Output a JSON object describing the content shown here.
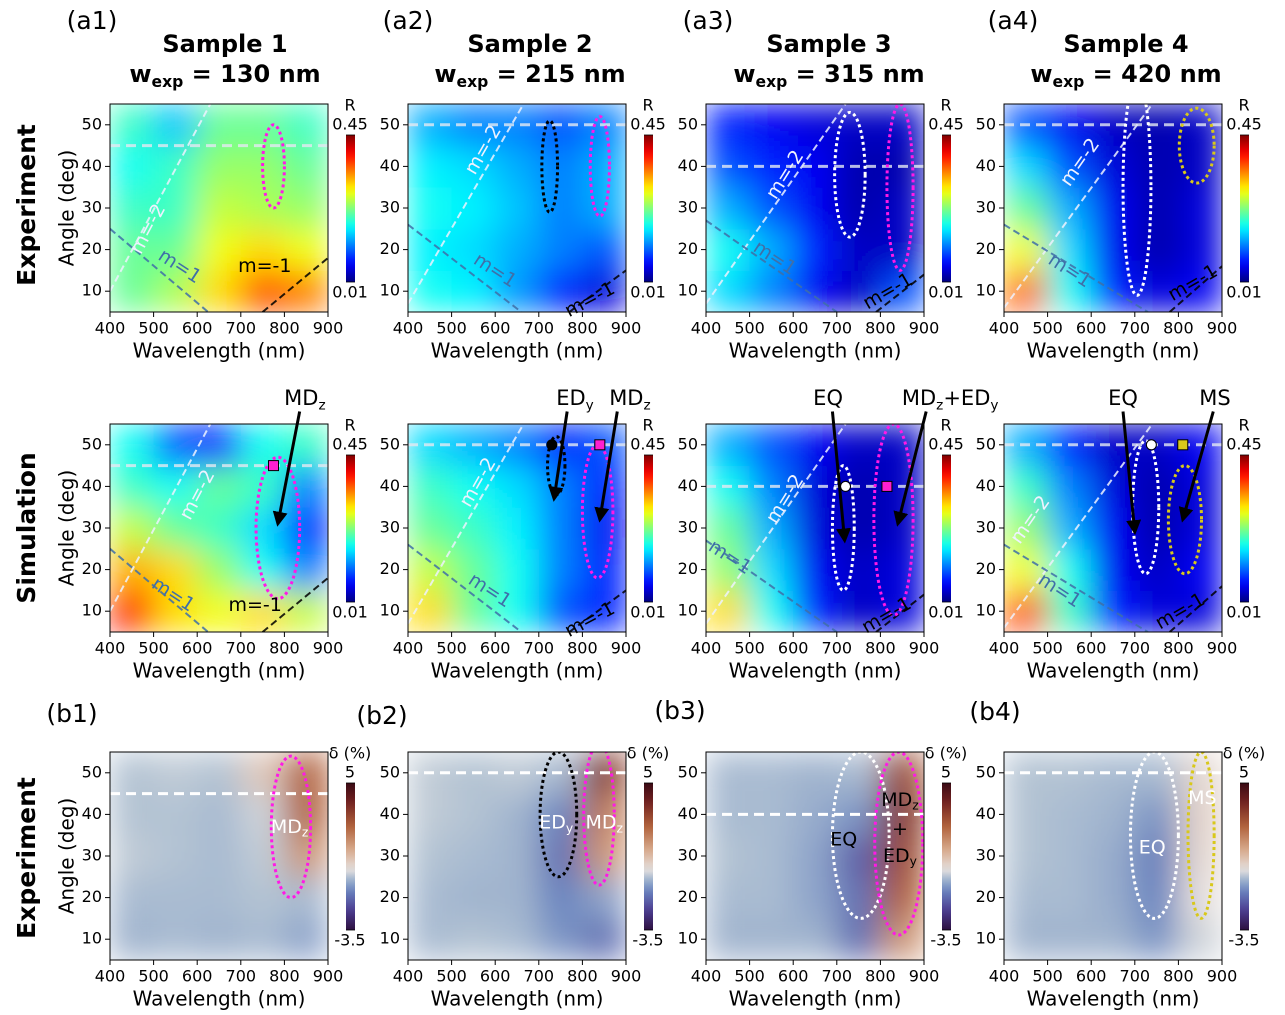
{
  "row_labels": [
    "Experiment",
    "Simulation",
    "Experiment"
  ],
  "chart_data": [
    {
      "type": "heatmap",
      "panel_label": "(a1)",
      "title": "Sample 1",
      "subtitle_parts": [
        "w",
        "exp",
        " = 130 nm"
      ],
      "xlabel": "Wavelength (nm)",
      "ylabel": "Angle (deg)",
      "xlim": [
        400,
        900
      ],
      "ylim": [
        5,
        55
      ],
      "xticks": [
        400,
        500,
        600,
        700,
        800,
        900
      ],
      "yticks": [
        10,
        20,
        30,
        40,
        50
      ],
      "x": [
        450,
        550,
        650,
        750,
        850
      ],
      "y": [
        10,
        20,
        30,
        40,
        50
      ],
      "z": [
        [
          0.22,
          0.25,
          0.3,
          0.36,
          0.34
        ],
        [
          0.22,
          0.22,
          0.28,
          0.3,
          0.28
        ],
        [
          0.2,
          0.2,
          0.26,
          0.25,
          0.24
        ],
        [
          0.18,
          0.2,
          0.24,
          0.24,
          0.22
        ],
        [
          0.2,
          0.15,
          0.22,
          0.22,
          0.2
        ]
      ],
      "colormap": "jet",
      "clim": [
        0.01,
        0.45
      ],
      "colorbar_label": "R",
      "colorbar_ticks": [
        0.45,
        0.01
      ],
      "hline": 45,
      "annotations": [
        [
          "m=-2"
        ],
        [
          "m=1"
        ],
        [
          "m=-1"
        ]
      ]
    },
    {
      "type": "heatmap",
      "panel_label": "(a2)",
      "title": "Sample 2",
      "subtitle_parts": [
        "w",
        "exp",
        " = 215 nm"
      ],
      "xlabel": "Wavelength (nm)",
      "xlim": [
        400,
        900
      ],
      "ylim": [
        5,
        55
      ],
      "xticks": [
        400,
        500,
        600,
        700,
        800,
        900
      ],
      "yticks": [
        10,
        20,
        30,
        40,
        50
      ],
      "x": [
        450,
        550,
        650,
        750,
        850
      ],
      "y": [
        10,
        20,
        30,
        40,
        50
      ],
      "z": [
        [
          0.18,
          0.17,
          0.13,
          0.08,
          0.05
        ],
        [
          0.17,
          0.16,
          0.14,
          0.12,
          0.1
        ],
        [
          0.18,
          0.17,
          0.15,
          0.12,
          0.14
        ],
        [
          0.17,
          0.16,
          0.14,
          0.12,
          0.14
        ],
        [
          0.14,
          0.12,
          0.12,
          0.1,
          0.12
        ]
      ],
      "colormap": "jet",
      "clim": [
        0.01,
        0.45
      ],
      "colorbar_label": "R",
      "colorbar_ticks": [
        0.45,
        0.01
      ],
      "hline": 50,
      "annotations": [
        [
          "m=-2"
        ],
        [
          "m=1"
        ],
        [
          "m=-1"
        ]
      ]
    },
    {
      "type": "heatmap",
      "panel_label": "(a3)",
      "title": "Sample 3",
      "subtitle_parts": [
        "w",
        "exp",
        " = 315 nm"
      ],
      "xlabel": "Wavelength (nm)",
      "xlim": [
        400,
        900
      ],
      "ylim": [
        5,
        55
      ],
      "xticks": [
        400,
        500,
        600,
        700,
        800,
        900
      ],
      "yticks": [
        10,
        20,
        30,
        40,
        50
      ],
      "x": [
        450,
        550,
        650,
        750,
        850
      ],
      "y": [
        10,
        20,
        30,
        40,
        50
      ],
      "z": [
        [
          0.16,
          0.12,
          0.06,
          0.04,
          0.1
        ],
        [
          0.18,
          0.14,
          0.08,
          0.04,
          0.04
        ],
        [
          0.14,
          0.1,
          0.06,
          0.03,
          0.04
        ],
        [
          0.1,
          0.08,
          0.06,
          0.03,
          0.03
        ],
        [
          0.08,
          0.06,
          0.05,
          0.04,
          0.04
        ]
      ],
      "colormap": "jet",
      "clim": [
        0.01,
        0.45
      ],
      "colorbar_label": "R",
      "colorbar_ticks": [
        0.45,
        0.01
      ],
      "hline": 40,
      "annotations": [
        [
          "m=-2"
        ],
        [
          "m=1"
        ],
        [
          "m=-1"
        ]
      ]
    },
    {
      "type": "heatmap",
      "panel_label": "(a4)",
      "title": "Sample 4",
      "subtitle_parts": [
        "w",
        "exp",
        " = 420 nm"
      ],
      "xlabel": "Wavelength (nm)",
      "xlim": [
        400,
        900
      ],
      "ylim": [
        5,
        55
      ],
      "xticks": [
        400,
        500,
        600,
        700,
        800,
        900
      ],
      "yticks": [
        10,
        20,
        30,
        40,
        50
      ],
      "x": [
        450,
        550,
        650,
        750,
        850
      ],
      "y": [
        10,
        20,
        30,
        40,
        50
      ],
      "z": [
        [
          0.35,
          0.18,
          0.08,
          0.05,
          0.06
        ],
        [
          0.28,
          0.16,
          0.06,
          0.03,
          0.05
        ],
        [
          0.22,
          0.14,
          0.06,
          0.03,
          0.05
        ],
        [
          0.16,
          0.1,
          0.05,
          0.03,
          0.04
        ],
        [
          0.1,
          0.06,
          0.04,
          0.03,
          0.04
        ]
      ],
      "colormap": "jet",
      "clim": [
        0.01,
        0.45
      ],
      "colorbar_label": "R",
      "colorbar_ticks": [
        0.45,
        0.01
      ],
      "hline": 50,
      "annotations": [
        [
          "m=-2"
        ],
        [
          "m=1"
        ],
        [
          "m=-1"
        ]
      ]
    },
    {
      "type": "heatmap",
      "xlabel": "Wavelength (nm)",
      "ylabel": "Angle (deg)",
      "xlim": [
        400,
        900
      ],
      "ylim": [
        5,
        55
      ],
      "xticks": [
        400,
        500,
        600,
        700,
        800,
        900
      ],
      "yticks": [
        10,
        20,
        30,
        40,
        50
      ],
      "x": [
        450,
        550,
        650,
        750,
        850
      ],
      "y": [
        10,
        20,
        30,
        40,
        50
      ],
      "z": [
        [
          0.38,
          0.3,
          0.28,
          0.3,
          0.26
        ],
        [
          0.32,
          0.3,
          0.24,
          0.18,
          0.12
        ],
        [
          0.26,
          0.22,
          0.2,
          0.16,
          0.08
        ],
        [
          0.2,
          0.18,
          0.22,
          0.2,
          0.12
        ],
        [
          0.18,
          0.1,
          0.08,
          0.18,
          0.2
        ]
      ],
      "colormap": "jet",
      "clim": [
        0.01,
        0.45
      ],
      "colorbar_label": "R",
      "colorbar_ticks": [
        0.45,
        0.01
      ],
      "hline": 45,
      "annotations": [
        [
          "m=-2"
        ],
        [
          "m=1"
        ],
        [
          "m=-1"
        ],
        [
          "MD",
          "z"
        ]
      ],
      "markers": [
        {
          "x": 775,
          "y": 45,
          "color": "#ff1fd0",
          "shape": "square"
        }
      ]
    },
    {
      "type": "heatmap",
      "xlabel": "Wavelength (nm)",
      "xlim": [
        400,
        900
      ],
      "ylim": [
        5,
        55
      ],
      "xticks": [
        400,
        500,
        600,
        700,
        800,
        900
      ],
      "yticks": [
        10,
        20,
        30,
        40,
        50
      ],
      "x": [
        450,
        550,
        650,
        750,
        850
      ],
      "y": [
        10,
        20,
        30,
        40,
        50
      ],
      "z": [
        [
          0.3,
          0.22,
          0.18,
          0.1,
          0.08
        ],
        [
          0.26,
          0.22,
          0.18,
          0.12,
          0.08
        ],
        [
          0.22,
          0.2,
          0.17,
          0.12,
          0.06
        ],
        [
          0.2,
          0.18,
          0.16,
          0.12,
          0.08
        ],
        [
          0.16,
          0.14,
          0.12,
          0.08,
          0.1
        ]
      ],
      "colormap": "jet",
      "clim": [
        0.01,
        0.45
      ],
      "colorbar_label": "R",
      "colorbar_ticks": [
        0.45,
        0.01
      ],
      "hline": 50,
      "annotations": [
        [
          "m=-2"
        ],
        [
          "m=1"
        ],
        [
          "m=-1"
        ],
        [
          "ED",
          "y"
        ],
        [
          "MD",
          "z"
        ]
      ],
      "markers": [
        {
          "x": 730,
          "y": 50,
          "color": "#000000",
          "shape": "circle"
        },
        {
          "x": 840,
          "y": 50,
          "color": "#ff1fd0",
          "shape": "square"
        }
      ]
    },
    {
      "type": "heatmap",
      "xlabel": "Wavelength (nm)",
      "xlim": [
        400,
        900
      ],
      "ylim": [
        5,
        55
      ],
      "xticks": [
        400,
        500,
        600,
        700,
        800,
        900
      ],
      "yticks": [
        10,
        20,
        30,
        40,
        50
      ],
      "x": [
        450,
        550,
        650,
        750,
        850
      ],
      "y": [
        10,
        20,
        30,
        40,
        50
      ],
      "z": [
        [
          0.3,
          0.18,
          0.08,
          0.04,
          0.05
        ],
        [
          0.24,
          0.16,
          0.06,
          0.04,
          0.05
        ],
        [
          0.22,
          0.14,
          0.05,
          0.03,
          0.04
        ],
        [
          0.18,
          0.12,
          0.05,
          0.03,
          0.04
        ],
        [
          0.14,
          0.1,
          0.06,
          0.04,
          0.04
        ]
      ],
      "colormap": "jet",
      "clim": [
        0.01,
        0.45
      ],
      "colorbar_label": "R",
      "colorbar_ticks": [
        0.45,
        0.01
      ],
      "hline": 40,
      "annotations": [
        [
          "m=-2"
        ],
        [
          "m=1"
        ],
        [
          "m=-1"
        ],
        [
          "EQ"
        ],
        [
          "MD",
          "z",
          "+ED",
          "y"
        ]
      ],
      "markers": [
        {
          "x": 720,
          "y": 40,
          "color": "#ffffff",
          "shape": "circle"
        },
        {
          "x": 815,
          "y": 40,
          "color": "#ff1fd0",
          "shape": "square"
        }
      ]
    },
    {
      "type": "heatmap",
      "xlabel": "Wavelength (nm)",
      "xlim": [
        400,
        900
      ],
      "ylim": [
        5,
        55
      ],
      "xticks": [
        400,
        500,
        600,
        700,
        800,
        900
      ],
      "yticks": [
        10,
        20,
        30,
        40,
        50
      ],
      "x": [
        450,
        550,
        650,
        750,
        850
      ],
      "y": [
        10,
        20,
        30,
        40,
        50
      ],
      "z": [
        [
          0.36,
          0.2,
          0.08,
          0.05,
          0.05
        ],
        [
          0.28,
          0.18,
          0.06,
          0.04,
          0.06
        ],
        [
          0.24,
          0.14,
          0.06,
          0.03,
          0.05
        ],
        [
          0.2,
          0.12,
          0.05,
          0.03,
          0.05
        ],
        [
          0.14,
          0.08,
          0.04,
          0.04,
          0.06
        ]
      ],
      "colormap": "jet",
      "clim": [
        0.01,
        0.45
      ],
      "colorbar_label": "R",
      "colorbar_ticks": [
        0.45,
        0.01
      ],
      "hline": 50,
      "annotations": [
        [
          "m=-2"
        ],
        [
          "m=1"
        ],
        [
          "m=-1"
        ],
        [
          "EQ"
        ],
        [
          "MS"
        ]
      ],
      "markers": [
        {
          "x": 738,
          "y": 50,
          "color": "#ffffff",
          "shape": "circle"
        },
        {
          "x": 810,
          "y": 50,
          "color": "#d8c81a",
          "shape": "square"
        }
      ]
    },
    {
      "type": "heatmap",
      "panel_label": "(b1)",
      "xlabel": "Wavelength (nm)",
      "ylabel": "Angle (deg)",
      "xlim": [
        400,
        900
      ],
      "ylim": [
        5,
        55
      ],
      "xticks": [
        400,
        500,
        600,
        700,
        800,
        900
      ],
      "yticks": [
        10,
        20,
        30,
        40,
        50
      ],
      "x": [
        450,
        550,
        650,
        750,
        850
      ],
      "y": [
        10,
        20,
        30,
        40,
        50
      ],
      "z": [
        [
          -0.6,
          -0.5,
          -0.6,
          -0.5,
          -0.8
        ],
        [
          -0.5,
          -0.5,
          -0.5,
          -0.4,
          -0.5
        ],
        [
          -0.3,
          -0.4,
          -0.5,
          -0.3,
          1.5
        ],
        [
          -0.4,
          -0.4,
          -0.5,
          -0.2,
          2.5
        ],
        [
          -0.4,
          -0.3,
          -0.4,
          0.5,
          2.5
        ]
      ],
      "colormap": "diverging",
      "clim": [
        -3.5,
        5
      ],
      "colorbar_label": "δ (%)",
      "colorbar_ticks": [
        5,
        -3.5
      ],
      "hline": 45,
      "annotations": [
        [
          "MD",
          "z"
        ]
      ]
    },
    {
      "type": "heatmap",
      "panel_label": "(b2)",
      "xlabel": "Wavelength (nm)",
      "xlim": [
        400,
        900
      ],
      "ylim": [
        5,
        55
      ],
      "xticks": [
        400,
        500,
        600,
        700,
        800,
        900
      ],
      "yticks": [
        10,
        20,
        30,
        40,
        50
      ],
      "x": [
        450,
        550,
        650,
        750,
        850
      ],
      "y": [
        10,
        20,
        30,
        40,
        50
      ],
      "z": [
        [
          -0.5,
          -0.4,
          -0.5,
          -1.0,
          -1.5
        ],
        [
          -0.5,
          -0.6,
          -0.6,
          -1.2,
          -0.8
        ],
        [
          -0.4,
          -0.5,
          -0.6,
          -1.5,
          1.5
        ],
        [
          -0.3,
          -0.4,
          -0.6,
          -1.2,
          2.0
        ],
        [
          -0.3,
          -0.4,
          -0.3,
          -0.5,
          3.5
        ]
      ],
      "colormap": "diverging",
      "clim": [
        -3.5,
        5
      ],
      "colorbar_label": "δ (%)",
      "colorbar_ticks": [
        5,
        -3.5
      ],
      "hline": 50,
      "annotations": [
        [
          "ED",
          "y"
        ],
        [
          "MD",
          "z"
        ]
      ]
    },
    {
      "type": "heatmap",
      "panel_label": "(b3)",
      "xlabel": "Wavelength (nm)",
      "xlim": [
        400,
        900
      ],
      "ylim": [
        5,
        55
      ],
      "xticks": [
        400,
        500,
        600,
        700,
        800,
        900
      ],
      "yticks": [
        10,
        20,
        30,
        40,
        50
      ],
      "x": [
        450,
        550,
        650,
        750,
        850
      ],
      "y": [
        10,
        20,
        30,
        40,
        50
      ],
      "z": [
        [
          -0.6,
          -0.6,
          -0.6,
          -1.5,
          1.5
        ],
        [
          -0.5,
          -0.5,
          -0.8,
          -1.5,
          2.5
        ],
        [
          -0.4,
          -0.5,
          -0.8,
          -1.8,
          3.0
        ],
        [
          -0.5,
          -0.5,
          -0.7,
          -1.0,
          3.5
        ],
        [
          -0.5,
          -0.5,
          -0.6,
          -0.5,
          3.0
        ]
      ],
      "colormap": "diverging",
      "clim": [
        -3.5,
        5
      ],
      "colorbar_label": "δ (%)",
      "colorbar_ticks": [
        5,
        -3.5
      ],
      "hline": 40,
      "annotations": [
        [
          "EQ"
        ],
        [
          "MD",
          "z"
        ],
        [
          "+"
        ],
        [
          "ED",
          "y"
        ]
      ]
    },
    {
      "type": "heatmap",
      "panel_label": "(b4)",
      "xlabel": "Wavelength (nm)",
      "xlim": [
        400,
        900
      ],
      "ylim": [
        5,
        55
      ],
      "xticks": [
        400,
        500,
        600,
        700,
        800,
        900
      ],
      "yticks": [
        10,
        20,
        30,
        40,
        50
      ],
      "x": [
        450,
        550,
        650,
        750,
        850
      ],
      "y": [
        10,
        20,
        30,
        40,
        50
      ],
      "z": [
        [
          -0.6,
          -0.6,
          -0.6,
          -1.0,
          -0.2
        ],
        [
          -0.5,
          -0.5,
          -0.7,
          -1.2,
          0.0
        ],
        [
          -0.4,
          -0.5,
          -0.7,
          -1.3,
          0.2
        ],
        [
          -0.4,
          -0.5,
          -0.6,
          -1.0,
          0.3
        ],
        [
          -0.4,
          -0.4,
          -0.5,
          -0.5,
          0.2
        ]
      ],
      "colormap": "diverging",
      "clim": [
        -3.5,
        5
      ],
      "colorbar_label": "δ (%)",
      "colorbar_ticks": [
        5,
        -3.5
      ],
      "hline": 50,
      "annotations": [
        [
          "EQ"
        ],
        [
          "MS"
        ]
      ]
    }
  ]
}
